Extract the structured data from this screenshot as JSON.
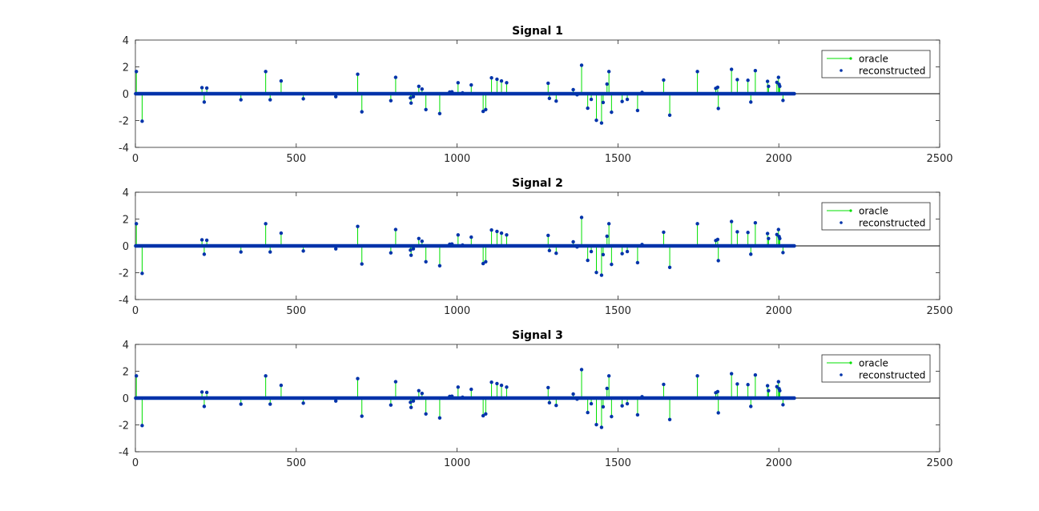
{
  "figure": {
    "background": "#ffffff",
    "colors": {
      "oracle": "#00e000",
      "reconstructed": "#0033aa",
      "axis": "#262626",
      "zero_line": "#000000"
    }
  },
  "chart_data": [
    {
      "type": "stem",
      "title": "Signal 1",
      "xlim": [
        0,
        2500
      ],
      "ylim": [
        -4,
        4
      ],
      "xticks": [
        0,
        500,
        1000,
        1500,
        2000,
        2500
      ],
      "yticks": [
        -4,
        -2,
        0,
        2,
        4
      ],
      "n_samples": 2048,
      "grid": false,
      "legend": {
        "location": "top-right",
        "entries": [
          "oracle",
          "reconstructed"
        ]
      },
      "series": [
        {
          "name": "oracle",
          "style": "green stem lines"
        },
        {
          "name": "reconstructed",
          "style": "blue dots"
        }
      ],
      "spikes": [
        [
          3,
          1.65
        ],
        [
          21,
          -2.05
        ],
        [
          207,
          0.45
        ],
        [
          214,
          -0.62
        ],
        [
          222,
          0.42
        ],
        [
          328,
          -0.45
        ],
        [
          405,
          1.65
        ],
        [
          419,
          -0.45
        ],
        [
          453,
          0.95
        ],
        [
          522,
          -0.38
        ],
        [
          623,
          -0.22
        ],
        [
          691,
          1.45
        ],
        [
          704,
          -1.35
        ],
        [
          794,
          -0.52
        ],
        [
          809,
          1.22
        ],
        [
          855,
          -0.32
        ],
        [
          857,
          -0.7
        ],
        [
          864,
          -0.22
        ],
        [
          881,
          0.55
        ],
        [
          891,
          0.35
        ],
        [
          903,
          -1.18
        ],
        [
          946,
          -1.48
        ],
        [
          977,
          0.12
        ],
        [
          984,
          0.14
        ],
        [
          1003,
          0.82
        ],
        [
          1017,
          0.06
        ],
        [
          1044,
          0.65
        ],
        [
          1081,
          -1.32
        ],
        [
          1089,
          -1.18
        ],
        [
          1107,
          1.18
        ],
        [
          1124,
          1.08
        ],
        [
          1138,
          0.95
        ],
        [
          1154,
          0.82
        ],
        [
          1283,
          0.78
        ],
        [
          1287,
          -0.35
        ],
        [
          1308,
          -0.55
        ],
        [
          1361,
          0.3
        ],
        [
          1373,
          -0.08
        ],
        [
          1387,
          2.12
        ],
        [
          1406,
          -1.08
        ],
        [
          1417,
          -0.42
        ],
        [
          1433,
          -1.98
        ],
        [
          1449,
          -2.18
        ],
        [
          1454,
          -0.65
        ],
        [
          1466,
          0.72
        ],
        [
          1472,
          1.65
        ],
        [
          1480,
          -1.38
        ],
        [
          1513,
          -0.58
        ],
        [
          1529,
          -0.42
        ],
        [
          1561,
          -1.25
        ],
        [
          1575,
          0.1
        ],
        [
          1642,
          1.02
        ],
        [
          1661,
          -1.6
        ],
        [
          1747,
          1.65
        ],
        [
          1804,
          0.4
        ],
        [
          1810,
          0.48
        ],
        [
          1812,
          -1.1
        ],
        [
          1853,
          1.82
        ],
        [
          1871,
          1.05
        ],
        [
          1904,
          1.0
        ],
        [
          1913,
          -0.62
        ],
        [
          1927,
          1.72
        ],
        [
          1965,
          0.92
        ],
        [
          1968,
          0.55
        ],
        [
          1994,
          0.85
        ],
        [
          1999,
          1.22
        ],
        [
          2001,
          0.7
        ],
        [
          2003,
          0.55
        ],
        [
          2013,
          -0.5
        ]
      ]
    },
    {
      "type": "stem",
      "title": "Signal 2",
      "xlim": [
        0,
        2500
      ],
      "ylim": [
        -4,
        4
      ],
      "xticks": [
        0,
        500,
        1000,
        1500,
        2000,
        2500
      ],
      "yticks": [
        -4,
        -2,
        0,
        2,
        4
      ],
      "n_samples": 2048,
      "grid": false,
      "legend": {
        "location": "top-right",
        "entries": [
          "oracle",
          "reconstructed"
        ]
      },
      "series": [
        {
          "name": "oracle",
          "style": "green stem lines"
        },
        {
          "name": "reconstructed",
          "style": "blue dots"
        }
      ],
      "spikes": [
        [
          3,
          1.65
        ],
        [
          21,
          -2.05
        ],
        [
          207,
          0.45
        ],
        [
          214,
          -0.62
        ],
        [
          222,
          0.42
        ],
        [
          328,
          -0.45
        ],
        [
          405,
          1.65
        ],
        [
          419,
          -0.45
        ],
        [
          453,
          0.95
        ],
        [
          522,
          -0.38
        ],
        [
          623,
          -0.22
        ],
        [
          691,
          1.45
        ],
        [
          704,
          -1.35
        ],
        [
          794,
          -0.52
        ],
        [
          809,
          1.22
        ],
        [
          855,
          -0.32
        ],
        [
          857,
          -0.7
        ],
        [
          864,
          -0.22
        ],
        [
          881,
          0.55
        ],
        [
          891,
          0.35
        ],
        [
          903,
          -1.18
        ],
        [
          946,
          -1.48
        ],
        [
          977,
          0.12
        ],
        [
          984,
          0.14
        ],
        [
          1003,
          0.82
        ],
        [
          1017,
          0.06
        ],
        [
          1044,
          0.65
        ],
        [
          1081,
          -1.32
        ],
        [
          1089,
          -1.18
        ],
        [
          1107,
          1.18
        ],
        [
          1124,
          1.08
        ],
        [
          1138,
          0.95
        ],
        [
          1154,
          0.82
        ],
        [
          1283,
          0.78
        ],
        [
          1287,
          -0.35
        ],
        [
          1308,
          -0.55
        ],
        [
          1361,
          0.3
        ],
        [
          1373,
          -0.08
        ],
        [
          1387,
          2.12
        ],
        [
          1406,
          -1.08
        ],
        [
          1417,
          -0.42
        ],
        [
          1433,
          -1.98
        ],
        [
          1449,
          -2.18
        ],
        [
          1454,
          -0.65
        ],
        [
          1466,
          0.72
        ],
        [
          1472,
          1.65
        ],
        [
          1480,
          -1.38
        ],
        [
          1513,
          -0.58
        ],
        [
          1529,
          -0.42
        ],
        [
          1561,
          -1.25
        ],
        [
          1575,
          0.1
        ],
        [
          1642,
          1.02
        ],
        [
          1661,
          -1.6
        ],
        [
          1747,
          1.65
        ],
        [
          1804,
          0.4
        ],
        [
          1810,
          0.48
        ],
        [
          1812,
          -1.1
        ],
        [
          1853,
          1.82
        ],
        [
          1871,
          1.05
        ],
        [
          1904,
          1.0
        ],
        [
          1913,
          -0.62
        ],
        [
          1927,
          1.72
        ],
        [
          1965,
          0.92
        ],
        [
          1968,
          0.55
        ],
        [
          1994,
          0.85
        ],
        [
          1999,
          1.22
        ],
        [
          2001,
          0.7
        ],
        [
          2003,
          0.55
        ],
        [
          2013,
          -0.5
        ]
      ]
    },
    {
      "type": "stem",
      "title": "Signal 3",
      "xlim": [
        0,
        2500
      ],
      "ylim": [
        -4,
        4
      ],
      "xticks": [
        0,
        500,
        1000,
        1500,
        2000,
        2500
      ],
      "yticks": [
        -4,
        -2,
        0,
        2,
        4
      ],
      "n_samples": 2048,
      "grid": false,
      "legend": {
        "location": "top-right",
        "entries": [
          "oracle",
          "reconstructed"
        ]
      },
      "series": [
        {
          "name": "oracle",
          "style": "green stem lines"
        },
        {
          "name": "reconstructed",
          "style": "blue dots"
        }
      ],
      "spikes": [
        [
          3,
          1.65
        ],
        [
          21,
          -2.05
        ],
        [
          207,
          0.45
        ],
        [
          214,
          -0.62
        ],
        [
          222,
          0.42
        ],
        [
          328,
          -0.45
        ],
        [
          405,
          1.65
        ],
        [
          419,
          -0.45
        ],
        [
          453,
          0.95
        ],
        [
          522,
          -0.38
        ],
        [
          623,
          -0.22
        ],
        [
          691,
          1.45
        ],
        [
          704,
          -1.35
        ],
        [
          794,
          -0.52
        ],
        [
          809,
          1.22
        ],
        [
          855,
          -0.32
        ],
        [
          857,
          -0.7
        ],
        [
          864,
          -0.22
        ],
        [
          881,
          0.55
        ],
        [
          891,
          0.35
        ],
        [
          903,
          -1.18
        ],
        [
          946,
          -1.48
        ],
        [
          977,
          0.12
        ],
        [
          984,
          0.14
        ],
        [
          1003,
          0.82
        ],
        [
          1017,
          0.06
        ],
        [
          1044,
          0.65
        ],
        [
          1081,
          -1.32
        ],
        [
          1089,
          -1.18
        ],
        [
          1107,
          1.18
        ],
        [
          1124,
          1.08
        ],
        [
          1138,
          0.95
        ],
        [
          1154,
          0.82
        ],
        [
          1283,
          0.78
        ],
        [
          1287,
          -0.35
        ],
        [
          1308,
          -0.55
        ],
        [
          1361,
          0.3
        ],
        [
          1373,
          -0.08
        ],
        [
          1387,
          2.12
        ],
        [
          1406,
          -1.08
        ],
        [
          1417,
          -0.42
        ],
        [
          1433,
          -1.98
        ],
        [
          1449,
          -2.18
        ],
        [
          1454,
          -0.65
        ],
        [
          1466,
          0.72
        ],
        [
          1472,
          1.65
        ],
        [
          1480,
          -1.38
        ],
        [
          1513,
          -0.58
        ],
        [
          1529,
          -0.42
        ],
        [
          1561,
          -1.25
        ],
        [
          1575,
          0.1
        ],
        [
          1642,
          1.02
        ],
        [
          1661,
          -1.6
        ],
        [
          1747,
          1.65
        ],
        [
          1804,
          0.4
        ],
        [
          1810,
          0.48
        ],
        [
          1812,
          -1.1
        ],
        [
          1853,
          1.82
        ],
        [
          1871,
          1.05
        ],
        [
          1904,
          1.0
        ],
        [
          1913,
          -0.62
        ],
        [
          1927,
          1.72
        ],
        [
          1965,
          0.92
        ],
        [
          1968,
          0.55
        ],
        [
          1994,
          0.85
        ],
        [
          1999,
          1.22
        ],
        [
          2001,
          0.7
        ],
        [
          2003,
          0.55
        ],
        [
          2013,
          -0.5
        ]
      ]
    }
  ]
}
